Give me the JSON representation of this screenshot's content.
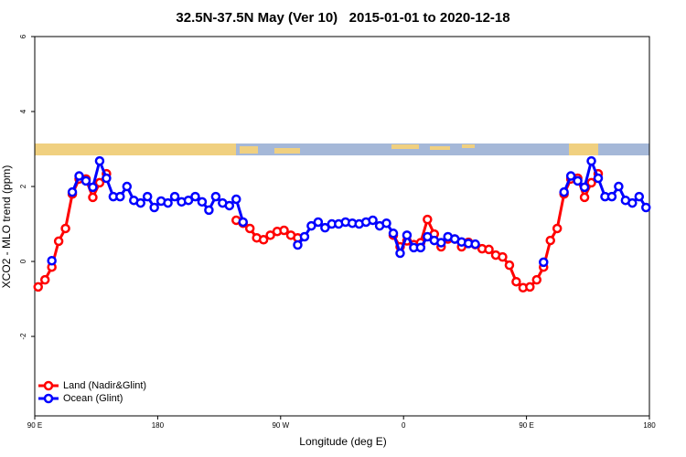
{
  "chart_data": {
    "type": "line",
    "title": "32.5N-37.5N May (Ver 10)   2015-01-01 to 2020-12-18",
    "xlabel": "Longitude (deg E)",
    "ylabel": "XCO2 - MLO trend (ppm)",
    "xlim": [
      90,
      540
    ],
    "ylim": [
      -4.12,
      6
    ],
    "xticks": [
      {
        "value": 90,
        "label": "90 E"
      },
      180,
      {
        "value": 270,
        "label": "90 W"
      },
      {
        "value": 360,
        "label": "0"
      },
      {
        "value": 450,
        "label": "90 E"
      },
      {
        "value": 540,
        "label": "180"
      }
    ],
    "yticks": [
      -2,
      0,
      2,
      4,
      6
    ],
    "grid": false,
    "legend": "bottom-left",
    "x": [
      92.5,
      97.5,
      102.5,
      107.5,
      112.5,
      117.5,
      122.5,
      127.5,
      132.5,
      137.5,
      142.5,
      147.5,
      152.5,
      157.5,
      162.5,
      167.5,
      172.5,
      177.5,
      182.5,
      187.5,
      192.5,
      197.5,
      202.5,
      207.5,
      212.5,
      217.5,
      222.5,
      227.5,
      232.5,
      237.5,
      242.5,
      247.5,
      252.5,
      257.5,
      262.5,
      267.5,
      272.5,
      277.5,
      282.5,
      287.5,
      292.5,
      297.5,
      302.5,
      307.5,
      312.5,
      317.5,
      322.5,
      327.5,
      332.5,
      337.5,
      342.5,
      347.5,
      352.5,
      357.5,
      362.5,
      367.5,
      372.5,
      377.5,
      382.5,
      387.5,
      392.5,
      397.5,
      402.5,
      407.5,
      412.5,
      417.5,
      422.5,
      427.5,
      432.5,
      437.5,
      442.5,
      447.5,
      452.5,
      457.5,
      462.5,
      467.5,
      472.5,
      477.5,
      482.5,
      487.5,
      492.5,
      497.5,
      502.5,
      507.5,
      512.5,
      517.5,
      522.5,
      527.5,
      532.5,
      537.5
    ],
    "series": [
      {
        "name": "Land (Nadir&Glint)",
        "color": "#ff0000",
        "values": [
          -0.68,
          -0.49,
          -0.15,
          0.54,
          0.88,
          1.8,
          2.2,
          2.2,
          1.71,
          2.1,
          2.34,
          null,
          null,
          null,
          null,
          null,
          null,
          null,
          null,
          null,
          null,
          null,
          null,
          null,
          null,
          null,
          null,
          null,
          null,
          1.1,
          1.02,
          0.88,
          0.63,
          0.58,
          0.7,
          0.8,
          0.83,
          0.7,
          0.63,
          null,
          null,
          null,
          null,
          null,
          null,
          null,
          null,
          null,
          null,
          null,
          null,
          null,
          0.7,
          0.39,
          0.55,
          0.45,
          0.5,
          1.12,
          0.73,
          0.39,
          0.6,
          0.6,
          0.39,
          0.51,
          0.45,
          0.34,
          0.32,
          0.17,
          0.12,
          -0.1,
          -0.54,
          -0.7,
          -0.68,
          -0.49,
          -0.15,
          0.56,
          0.88,
          1.8,
          2.2,
          2.22,
          1.71,
          2.1,
          2.34,
          null,
          null,
          null,
          null,
          null,
          null,
          null
        ]
      },
      {
        "name": "Ocean (Glint)",
        "color": "#0000ff",
        "values": [
          null,
          null,
          0.02,
          null,
          null,
          1.85,
          2.28,
          2.15,
          1.98,
          2.68,
          2.22,
          1.73,
          1.73,
          2.0,
          1.63,
          1.56,
          1.73,
          1.44,
          1.61,
          1.56,
          1.73,
          1.59,
          1.63,
          1.73,
          1.59,
          1.37,
          1.73,
          1.56,
          1.49,
          1.66,
          1.05,
          null,
          null,
          null,
          null,
          null,
          null,
          null,
          0.44,
          0.66,
          0.95,
          1.05,
          0.9,
          1.0,
          1.0,
          1.05,
          1.02,
          1.0,
          1.05,
          1.1,
          0.95,
          1.02,
          0.75,
          0.22,
          0.7,
          0.37,
          0.37,
          0.66,
          0.56,
          0.5,
          0.66,
          0.6,
          0.52,
          0.48,
          0.46,
          null,
          null,
          null,
          null,
          null,
          null,
          null,
          null,
          null,
          -0.02,
          null,
          null,
          1.85,
          2.28,
          2.15,
          1.98,
          2.68,
          2.22,
          1.73,
          1.73,
          2.0,
          1.63,
          1.56,
          1.73,
          1.44
        ]
      }
    ]
  }
}
